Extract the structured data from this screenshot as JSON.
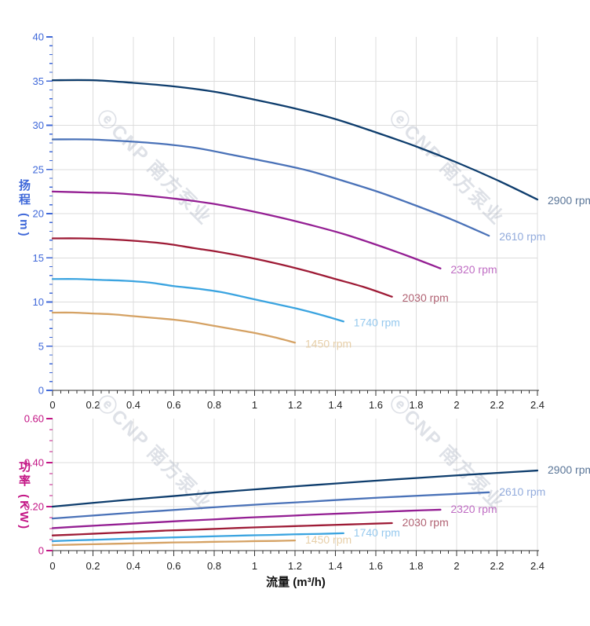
{
  "watermark": {
    "text": "ⓔCNP 南方泵业",
    "color": "rgba(176,184,197,0.42)"
  },
  "chart_data": [
    {
      "id": "head",
      "type": "line",
      "title": "",
      "ylabel": "扬程 (m)",
      "xlabel": "",
      "xlim": [
        0,
        2.4
      ],
      "ylim": [
        0,
        40
      ],
      "x_major_step": 0.2,
      "x_minor_step": 0.04,
      "y_major_step": 5,
      "y_minor_step": 1,
      "grid": true,
      "axis_color": "#3f68d9",
      "x_tick_labels": [
        "0",
        "0.2",
        "0.4",
        "0.6",
        "0.8",
        "1",
        "1.2",
        "1.4",
        "1.6",
        "1.8",
        "2",
        "2.2",
        "2.4"
      ],
      "y_tick_labels": [
        "0",
        "5",
        "10",
        "15",
        "20",
        "25",
        "30",
        "35",
        "40"
      ],
      "legend_position": "curve-end-right",
      "series": [
        {
          "name": "2900 rpm",
          "color": "#0e3d6d",
          "label_color": "#5b7698",
          "x": [
            0,
            0.2,
            0.4,
            0.6,
            0.8,
            1,
            1.2,
            1.4,
            1.6,
            1.8,
            2,
            2.2,
            2.4
          ],
          "y": [
            35.1,
            35.1,
            34.8,
            34.4,
            33.8,
            32.9,
            31.9,
            30.7,
            29.2,
            27.6,
            25.8,
            23.8,
            21.6
          ]
        },
        {
          "name": "2610 rpm",
          "color": "#4a72b8",
          "label_color": "#92abdc",
          "x": [
            0,
            0.18,
            0.36,
            0.54,
            0.72,
            0.9,
            1.08,
            1.26,
            1.44,
            1.62,
            1.8,
            1.98,
            2.16
          ],
          "y": [
            28.4,
            28.4,
            28.2,
            27.9,
            27.4,
            26.6,
            25.8,
            24.9,
            23.7,
            22.4,
            20.9,
            19.3,
            17.5
          ]
        },
        {
          "name": "2320 rpm",
          "color": "#941f93",
          "label_color": "#c06ec4",
          "x": [
            0,
            0.16,
            0.32,
            0.48,
            0.64,
            0.8,
            0.96,
            1.12,
            1.28,
            1.44,
            1.6,
            1.76,
            1.92
          ],
          "y": [
            22.5,
            22.4,
            22.3,
            22.0,
            21.6,
            21.1,
            20.4,
            19.6,
            18.7,
            17.7,
            16.5,
            15.2,
            13.8
          ]
        },
        {
          "name": "2030 rpm",
          "color": "#9e1b36",
          "label_color": "#b16273",
          "x": [
            0,
            0.14,
            0.28,
            0.42,
            0.56,
            0.7,
            0.84,
            0.98,
            1.12,
            1.26,
            1.4,
            1.54,
            1.68
          ],
          "y": [
            17.2,
            17.2,
            17.1,
            16.9,
            16.6,
            16.1,
            15.6,
            15.0,
            14.3,
            13.5,
            12.6,
            11.7,
            10.6
          ]
        },
        {
          "name": "1740 rpm",
          "color": "#3ba4e0",
          "label_color": "#96c9ee",
          "x": [
            0,
            0.12,
            0.24,
            0.36,
            0.48,
            0.6,
            0.72,
            0.84,
            0.96,
            1.08,
            1.2,
            1.32,
            1.44
          ],
          "y": [
            12.6,
            12.6,
            12.5,
            12.4,
            12.2,
            11.8,
            11.5,
            11.1,
            10.5,
            9.9,
            9.3,
            8.6,
            7.8
          ]
        },
        {
          "name": "1450 rpm",
          "color": "#d5a264",
          "label_color": "#e7cfa9",
          "x": [
            0,
            0.1,
            0.2,
            0.3,
            0.4,
            0.5,
            0.6,
            0.7,
            0.8,
            0.9,
            1,
            1.1,
            1.2
          ],
          "y": [
            8.8,
            8.8,
            8.7,
            8.6,
            8.4,
            8.2,
            8.0,
            7.7,
            7.3,
            6.9,
            6.5,
            6.0,
            5.4
          ]
        }
      ]
    },
    {
      "id": "power",
      "type": "line",
      "title": "",
      "ylabel": "功率 (KW)",
      "xlabel": "流量 (m³/h)",
      "xlim": [
        0,
        2.4
      ],
      "ylim": [
        0,
        0.6
      ],
      "x_major_step": 0.2,
      "x_minor_step": 0.04,
      "y_major_step": 0.2,
      "y_minor_step": 0.05,
      "grid": true,
      "axis_color": "#c31585",
      "x_tick_labels": [
        "0",
        "0.2",
        "0.4",
        "0.6",
        "0.8",
        "1",
        "1.2",
        "1.4",
        "1.6",
        "1.8",
        "2",
        "2.2",
        "2.4"
      ],
      "y_tick_labels": [
        "0",
        "0.20",
        "0.40",
        "0.60"
      ],
      "legend_position": "curve-end-right",
      "series": [
        {
          "name": "2900 rpm",
          "color": "#0e3d6d",
          "label_color": "#5b7698",
          "x": [
            0,
            0.2,
            0.4,
            0.6,
            0.8,
            1,
            1.2,
            1.4,
            1.6,
            1.8,
            2,
            2.2,
            2.4
          ],
          "y": [
            0.2,
            0.217,
            0.233,
            0.248,
            0.264,
            0.278,
            0.292,
            0.305,
            0.318,
            0.33,
            0.342,
            0.353,
            0.364
          ]
        },
        {
          "name": "2610 rpm",
          "color": "#4a72b8",
          "label_color": "#92abdc",
          "x": [
            0,
            0.18,
            0.36,
            0.54,
            0.72,
            0.9,
            1.08,
            1.26,
            1.44,
            1.62,
            1.8,
            1.98,
            2.16
          ],
          "y": [
            0.146,
            0.158,
            0.17,
            0.181,
            0.192,
            0.203,
            0.213,
            0.222,
            0.232,
            0.241,
            0.249,
            0.257,
            0.265
          ]
        },
        {
          "name": "2320 rpm",
          "color": "#941f93",
          "label_color": "#c06ec4",
          "x": [
            0,
            0.16,
            0.32,
            0.48,
            0.64,
            0.8,
            0.96,
            1.12,
            1.28,
            1.44,
            1.6,
            1.76,
            1.92
          ],
          "y": [
            0.102,
            0.111,
            0.119,
            0.127,
            0.135,
            0.142,
            0.15,
            0.156,
            0.163,
            0.169,
            0.175,
            0.181,
            0.186
          ]
        },
        {
          "name": "2030 rpm",
          "color": "#9e1b36",
          "label_color": "#b16273",
          "x": [
            0,
            0.14,
            0.28,
            0.42,
            0.56,
            0.7,
            0.84,
            0.98,
            1.12,
            1.26,
            1.4,
            1.54,
            1.68
          ],
          "y": [
            0.069,
            0.074,
            0.08,
            0.085,
            0.091,
            0.095,
            0.1,
            0.105,
            0.109,
            0.113,
            0.117,
            0.121,
            0.125
          ]
        },
        {
          "name": "1740 rpm",
          "color": "#3ba4e0",
          "label_color": "#96c9ee",
          "x": [
            0,
            0.12,
            0.24,
            0.36,
            0.48,
            0.6,
            0.72,
            0.84,
            0.96,
            1.08,
            1.2,
            1.32,
            1.44
          ],
          "y": [
            0.043,
            0.047,
            0.05,
            0.054,
            0.057,
            0.06,
            0.063,
            0.066,
            0.069,
            0.071,
            0.074,
            0.076,
            0.079
          ]
        },
        {
          "name": "1450 rpm",
          "color": "#d5a264",
          "label_color": "#e7cfa9",
          "x": [
            0,
            0.1,
            0.2,
            0.3,
            0.4,
            0.5,
            0.6,
            0.7,
            0.8,
            0.9,
            1,
            1.1,
            1.2
          ],
          "y": [
            0.025,
            0.027,
            0.029,
            0.031,
            0.033,
            0.035,
            0.037,
            0.038,
            0.04,
            0.041,
            0.043,
            0.044,
            0.046
          ]
        }
      ]
    }
  ]
}
